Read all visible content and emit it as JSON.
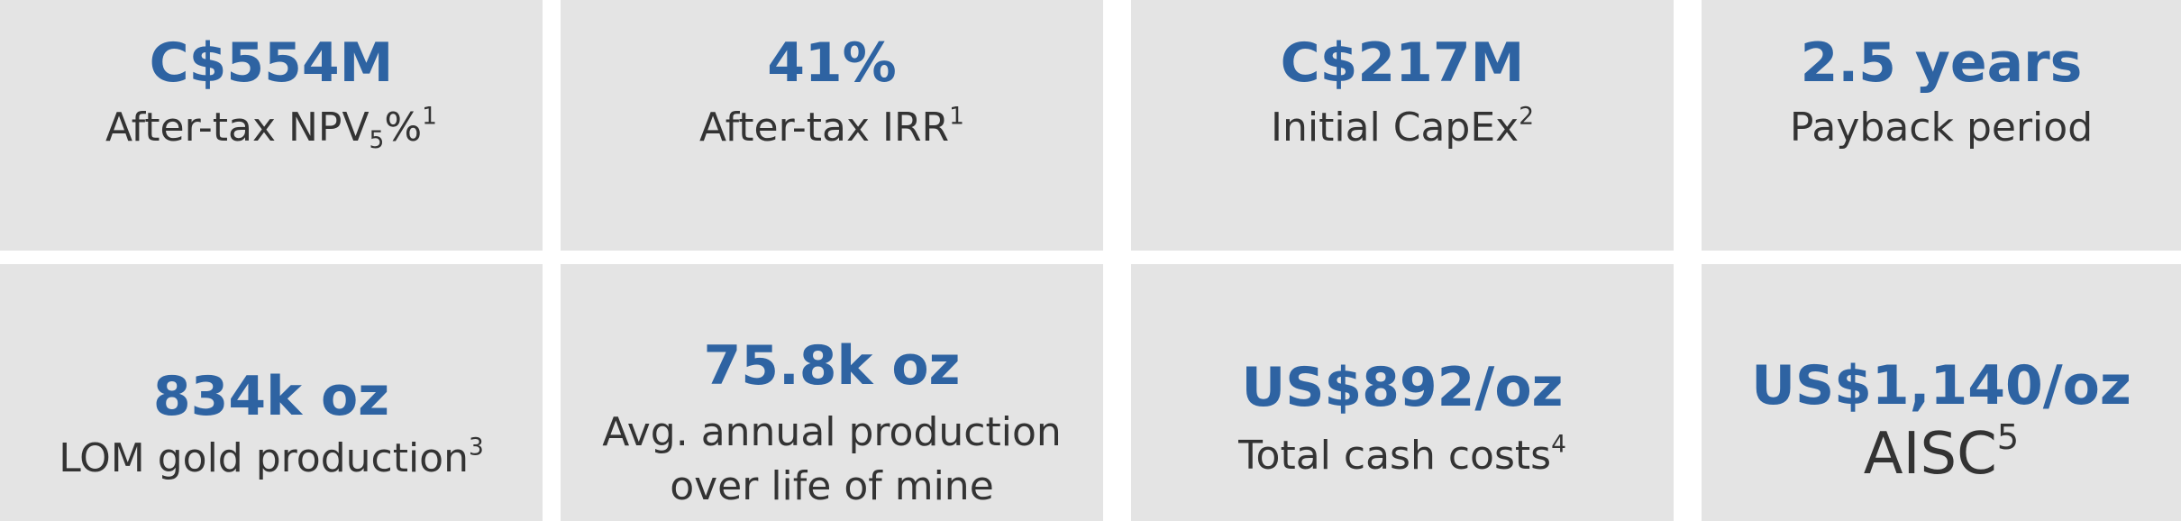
{
  "tiles": [
    {
      "value": "C$554M",
      "label": "After-tax NPV",
      "label_sub": "5",
      "label_after": "%",
      "footnote": "1"
    },
    {
      "value": "41%",
      "label": "After-tax IRR",
      "footnote": "1"
    },
    {
      "value": "C$217M",
      "label": "Initial CapEx",
      "footnote": "2"
    },
    {
      "value": "2.5 years",
      "label": "Payback period"
    },
    {
      "value": "834k oz",
      "label": "LOM gold production",
      "footnote": "3"
    },
    {
      "value": "75.8k oz",
      "label": "Avg. annual production",
      "label_line2": "over life of mine"
    },
    {
      "value": "US$892/oz",
      "label": "Total cash costs",
      "footnote": "4"
    },
    {
      "value": "US$1,140/oz",
      "label": "AISC",
      "footnote": "5"
    }
  ]
}
